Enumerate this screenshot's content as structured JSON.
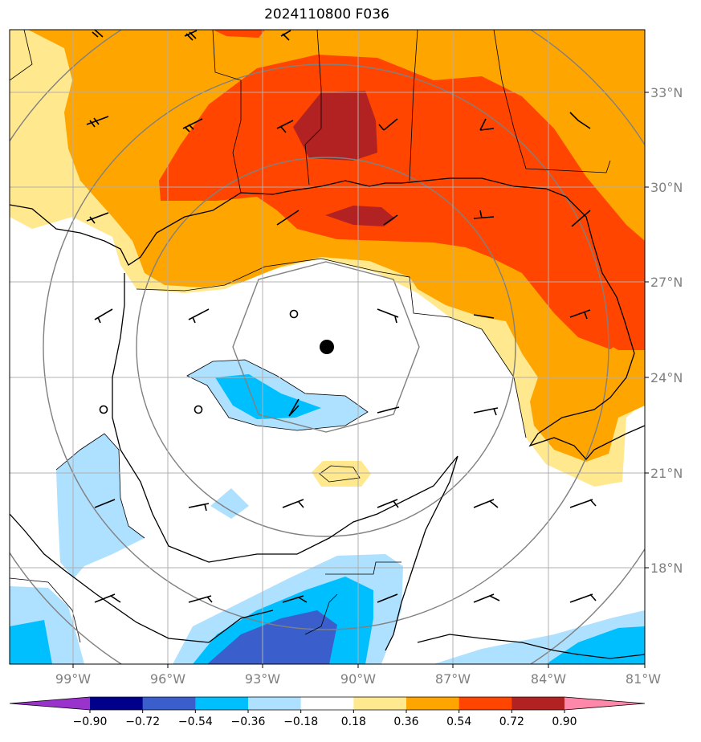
{
  "title": "2024110800 F036",
  "lat_labels": [
    "33°N",
    "30°N",
    "27°N",
    "24°N",
    "21°N",
    "18°N"
  ],
  "lon_labels": [
    "99°W",
    "96°W",
    "93°W",
    "90°W",
    "87°W",
    "84°W",
    "81°W"
  ],
  "colorbar": {
    "ticks": [
      "−0.90",
      "−0.72",
      "−0.54",
      "−0.36",
      "−0.18",
      "0.18",
      "0.36",
      "0.54",
      "0.72",
      "0.90"
    ],
    "colors": [
      "#9933cc",
      "#00008b",
      "#3a5fcd",
      "#00bfff",
      "#aee0ff",
      "#ffffff",
      "#ffe88e",
      "#ffa500",
      "#ff4500",
      "#b22222",
      "#ff88aa"
    ]
  },
  "fill_colors": {
    "light_yellow": "#ffe88e",
    "orange": "#ffa500",
    "red_orange": "#ff4500",
    "dark_red": "#b22222",
    "light_blue": "#aee0ff",
    "cyan": "#00bfff",
    "royal_blue": "#3a5fcd"
  }
}
